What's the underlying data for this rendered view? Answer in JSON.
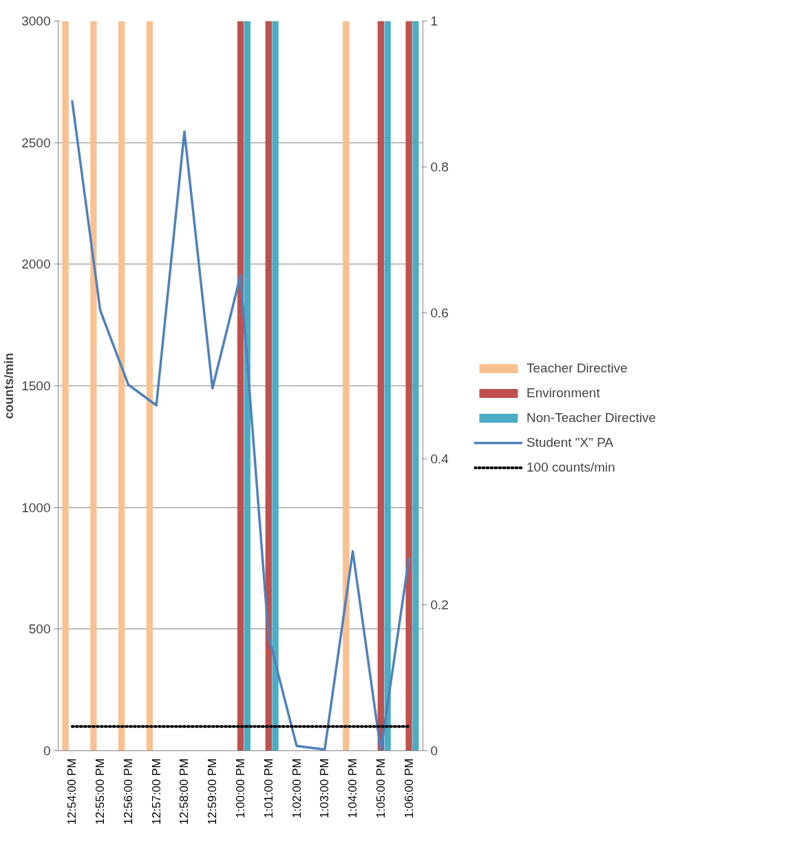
{
  "chart_data": {
    "type": "bar",
    "ylabel": "counts/min",
    "categories": [
      "12:54:00 PM",
      "12:55:00 PM",
      "12:56:00 PM",
      "12:57:00 PM",
      "12:58:00 PM",
      "12:59:00 PM",
      "1:00:00 PM",
      "1:01:00 PM",
      "1:02:00 PM",
      "1:03:00 PM",
      "1:04:00 PM",
      "1:05:00 PM",
      "1:06:00 PM"
    ],
    "series": [
      {
        "name": "Teacher Directive",
        "axis": "y2",
        "color": "#fac090",
        "values": [
          1,
          1,
          1,
          1,
          null,
          null,
          null,
          null,
          null,
          null,
          1,
          null,
          null
        ]
      },
      {
        "name": "Environment",
        "axis": "y2",
        "color": "#c0504d",
        "values": [
          null,
          null,
          null,
          null,
          null,
          null,
          1,
          1,
          null,
          null,
          null,
          1,
          1
        ]
      },
      {
        "name": "Non-Teacher Directive",
        "axis": "y2",
        "color": "#4bacc6",
        "values": [
          null,
          null,
          null,
          null,
          null,
          null,
          1,
          1,
          null,
          null,
          null,
          1,
          1
        ]
      },
      {
        "name": "Student \"X\" PA",
        "type": "line",
        "line_style": "solid",
        "color": "#4f81bd",
        "values": [
          2670,
          1810,
          1505,
          1420,
          2545,
          1490,
          1955,
          470,
          20,
          5,
          820,
          0,
          790
        ]
      },
      {
        "name": "100 counts/min",
        "type": "line",
        "line_style": "dotted",
        "color": "#000000",
        "values": [
          100,
          100,
          100,
          100,
          100,
          100,
          100,
          100,
          100,
          100,
          100,
          100,
          100
        ]
      }
    ],
    "ylim": [
      0,
      3000
    ],
    "yticks": [
      0,
      500,
      1000,
      1500,
      2000,
      2500,
      3000
    ],
    "y2lim": [
      0,
      1
    ],
    "y2ticks": [
      0,
      0.2,
      0.4,
      0.6,
      0.8,
      1
    ],
    "grid": "y",
    "legend": "right"
  }
}
